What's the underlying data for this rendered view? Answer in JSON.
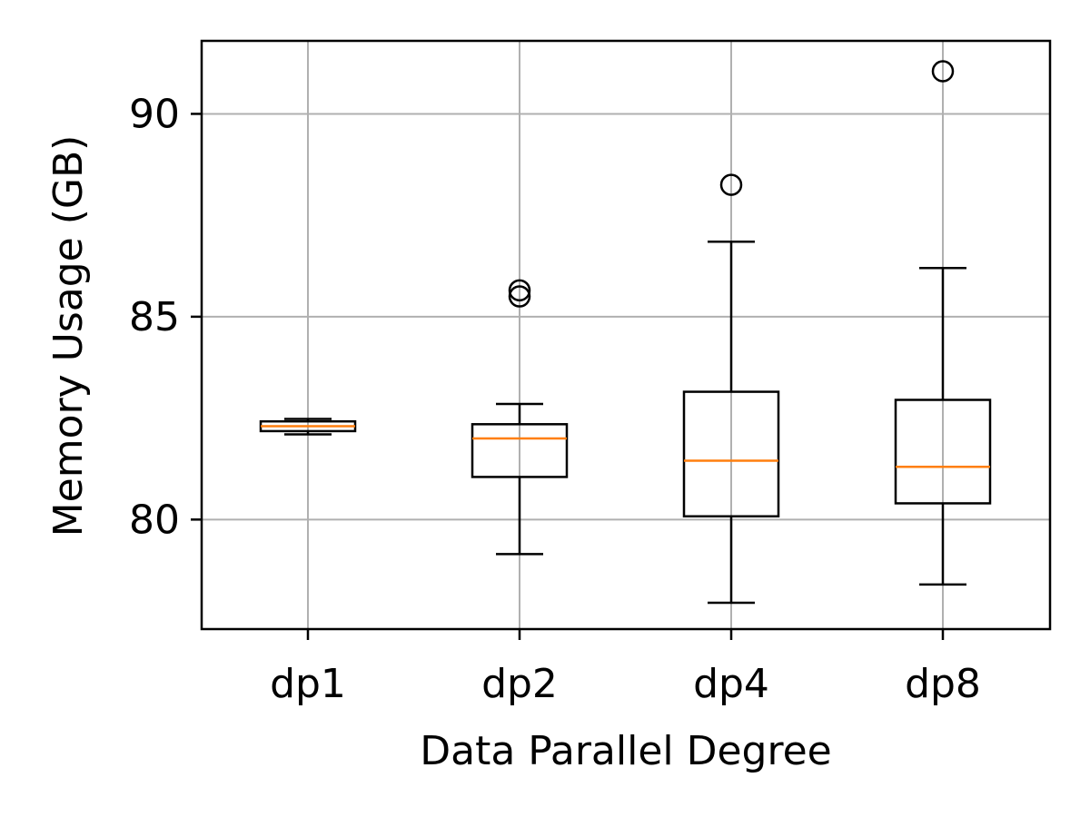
{
  "chart_data": {
    "type": "box",
    "title": "",
    "xlabel": "Data Parallel Degree",
    "ylabel": "Memory Usage (GB)",
    "ylim": [
      77.3,
      91.8
    ],
    "yticks": [
      80,
      85,
      90
    ],
    "ytick_labels": [
      "80",
      "85",
      "90"
    ],
    "grid": true,
    "categories": [
      "dp1",
      "dp2",
      "dp4",
      "dp8"
    ],
    "boxes": [
      {
        "label": "dp1",
        "whisker_low": 82.1,
        "q1": 82.18,
        "median": 82.3,
        "q3": 82.42,
        "whisker_high": 82.48,
        "outliers": []
      },
      {
        "label": "dp2",
        "whisker_low": 79.15,
        "q1": 81.05,
        "median": 82.0,
        "q3": 82.35,
        "whisker_high": 82.85,
        "outliers": [
          85.5,
          85.65
        ]
      },
      {
        "label": "dp4",
        "whisker_low": 77.95,
        "q1": 80.08,
        "median": 81.45,
        "q3": 83.15,
        "whisker_high": 86.85,
        "outliers": [
          88.25
        ]
      },
      {
        "label": "dp8",
        "whisker_low": 78.4,
        "q1": 80.4,
        "median": 81.3,
        "q3": 82.95,
        "whisker_high": 86.2,
        "outliers": [
          91.05
        ]
      }
    ],
    "colors": {
      "box": "#000000",
      "median": "#ff7f0e",
      "grid": "#b0b0b0"
    }
  }
}
